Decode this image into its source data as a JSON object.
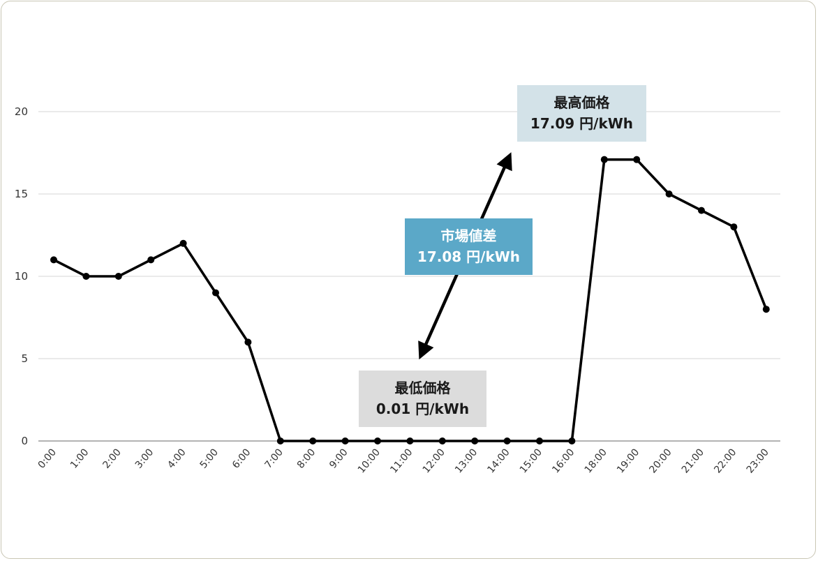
{
  "chart_data": {
    "type": "line",
    "categories": [
      "0:00",
      "1:00",
      "2:00",
      "3:00",
      "4:00",
      "5:00",
      "6:00",
      "7:00",
      "8:00",
      "9:00",
      "10:00",
      "11:00",
      "12:00",
      "13:00",
      "14:00",
      "15:00",
      "16:00",
      "18:00",
      "19:00",
      "20:00",
      "21:00",
      "22:00",
      "23:00"
    ],
    "values": [
      11,
      10,
      10,
      11,
      12,
      9,
      6,
      0,
      0,
      0,
      0,
      0,
      0,
      0,
      0,
      0,
      0,
      17.09,
      17.09,
      15,
      14,
      13,
      8
    ],
    "yticks": [
      0,
      5,
      10,
      15,
      20
    ],
    "ylim": [
      0,
      22
    ],
    "grid": true,
    "line_color": "#000000",
    "annotations": {
      "max": {
        "line1": "最高価格",
        "line2": "17.09 円/kWh",
        "color": "#d3e2e8"
      },
      "spread": {
        "line1": "市場値差",
        "line2": "17.08 円/kWh",
        "color": "#5ba8c8"
      },
      "min": {
        "line1": "最低価格",
        "line2": "0.01 円/kWh",
        "color": "#dcdcdc"
      }
    }
  }
}
